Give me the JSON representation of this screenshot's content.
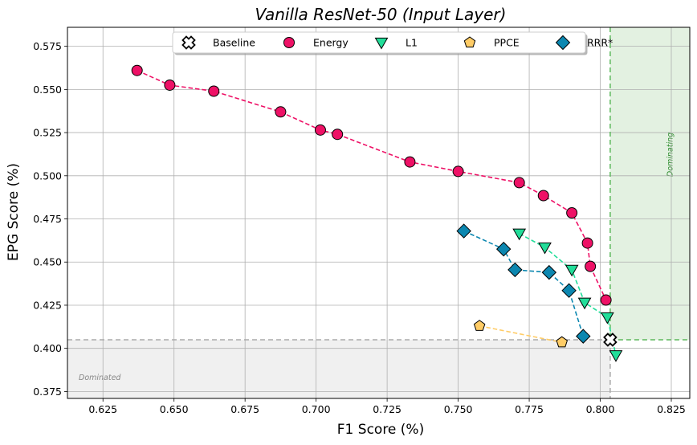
{
  "chart_data": {
    "type": "scatter",
    "title": "Vanilla ResNet-50 (Input Layer)",
    "xlabel": "F1 Score (%)",
    "ylabel": "EPG Score (%)",
    "xlim": [
      0.6125,
      0.8315
    ],
    "ylim": [
      0.371,
      0.586
    ],
    "x_ticks": [
      "0.625",
      "0.650",
      "0.675",
      "0.700",
      "0.725",
      "0.750",
      "0.775",
      "0.800",
      "0.825"
    ],
    "y_ticks": [
      "0.375",
      "0.400",
      "0.425",
      "0.450",
      "0.475",
      "0.500",
      "0.525",
      "0.550",
      "0.575"
    ],
    "grid": true,
    "legend_position": "top-center",
    "baseline": {
      "x": 0.8035,
      "y": 0.405
    },
    "regions": {
      "dominated_label": "Dominated",
      "dominating_label": "Dominating"
    },
    "series": [
      {
        "name": "Baseline",
        "marker": "cross",
        "color": "#ffffff",
        "connected": false,
        "points": [
          [
            0.8035,
            0.405
          ]
        ]
      },
      {
        "name": "Energy",
        "marker": "circle",
        "color": "#ee1166",
        "connected": true,
        "points": [
          [
            0.637,
            0.561
          ],
          [
            0.6485,
            0.5525
          ],
          [
            0.664,
            0.549
          ],
          [
            0.6875,
            0.537
          ],
          [
            0.7015,
            0.5265
          ],
          [
            0.7075,
            0.524
          ],
          [
            0.733,
            0.508
          ],
          [
            0.75,
            0.5025
          ],
          [
            0.7715,
            0.496
          ],
          [
            0.78,
            0.4885
          ],
          [
            0.79,
            0.4785
          ],
          [
            0.7955,
            0.461
          ],
          [
            0.7965,
            0.4475
          ],
          [
            0.802,
            0.428
          ]
        ]
      },
      {
        "name": "L1",
        "marker": "triangle-down",
        "color": "#22dd99",
        "connected": true,
        "points": [
          [
            0.7715,
            0.4665
          ],
          [
            0.7805,
            0.4585
          ],
          [
            0.79,
            0.4455
          ],
          [
            0.7945,
            0.4265
          ],
          [
            0.8025,
            0.418
          ],
          [
            0.8055,
            0.396
          ]
        ]
      },
      {
        "name": "PPCE",
        "marker": "pentagon",
        "color": "#ffcc66",
        "connected": true,
        "points": [
          [
            0.7575,
            0.413
          ],
          [
            0.7865,
            0.4035
          ]
        ]
      },
      {
        "name": "RRR*",
        "marker": "diamond",
        "color": "#0c87b0",
        "connected": true,
        "points": [
          [
            0.752,
            0.468
          ],
          [
            0.766,
            0.4575
          ],
          [
            0.77,
            0.4455
          ],
          [
            0.782,
            0.444
          ],
          [
            0.789,
            0.4335
          ],
          [
            0.794,
            0.407
          ]
        ]
      }
    ]
  }
}
